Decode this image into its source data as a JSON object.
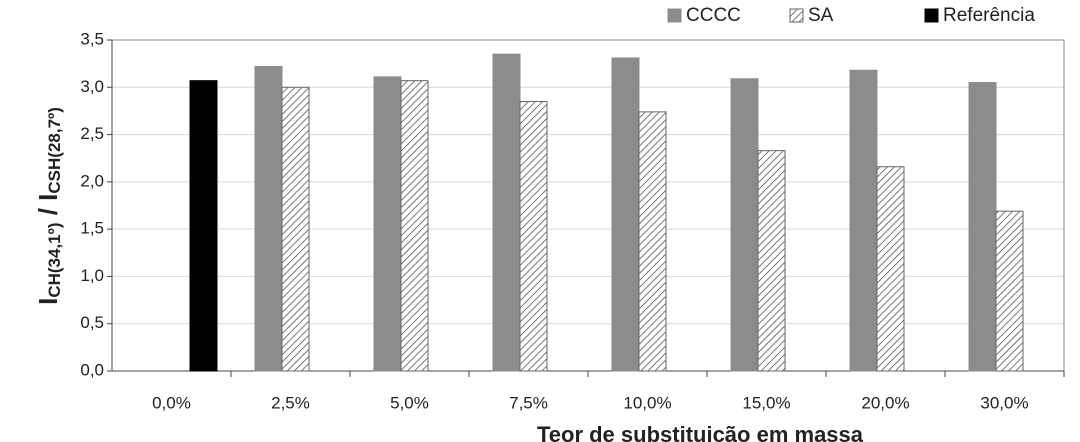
{
  "chart_data": {
    "type": "bar",
    "y_label": [
      "I",
      "CH(34,1º)",
      " / I",
      "CSH(28,7º)"
    ],
    "x_label": "Teor de substituição em massa",
    "categories": [
      "0,0%",
      "2,5%",
      "5,0%",
      "7,5%",
      "10,0%",
      "15,0%",
      "20,0%",
      "30,0%"
    ],
    "series": [
      {
        "name": "CCCC",
        "color": "#8c8c8c",
        "values": [
          null,
          3.22,
          3.11,
          3.35,
          3.31,
          3.09,
          3.18,
          3.05
        ]
      },
      {
        "name": "SA",
        "color": "#555555",
        "pattern": "hatch",
        "values": [
          null,
          3.0,
          3.07,
          2.85,
          2.74,
          2.33,
          2.16,
          1.69
        ]
      },
      {
        "name": "Referência",
        "color": "#000000",
        "values": [
          3.07,
          null,
          null,
          null,
          null,
          null,
          null,
          null
        ]
      }
    ],
    "ylim": [
      0,
      3.5
    ],
    "yticks": [
      {
        "value": 0,
        "label": "0,0"
      },
      {
        "value": 0.5,
        "label": "0,5"
      },
      {
        "value": 1,
        "label": "1,0"
      },
      {
        "value": 1.5,
        "label": "1,5"
      },
      {
        "value": 2,
        "label": "2,0"
      },
      {
        "value": 2.5,
        "label": "2,5"
      },
      {
        "value": 3,
        "label": "3,0"
      },
      {
        "value": 3.5,
        "label": "3,5"
      }
    ],
    "grid": true,
    "legend": "top-right"
  }
}
